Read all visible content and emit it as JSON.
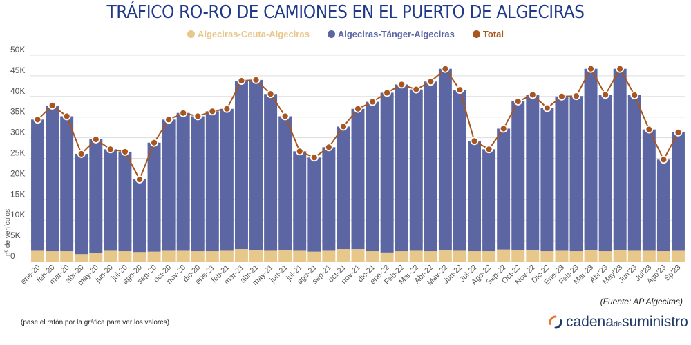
{
  "title": "TRÁFICO RO-RO DE CAMIONES EN EL PUERTO DE ALGECIRAS",
  "source": "(Fuente: AP Algeciras)",
  "hint": "(pase el ratón por la gráfica para ver los valores)",
  "brand": {
    "part1": "cadena",
    "part2": "de",
    "part3": "suministro"
  },
  "colors": {
    "title": "#1f3a8a",
    "ceuta": "#e8c78a",
    "tanger": "#5b66a3",
    "total": "#a8551f",
    "grid": "#dddddd",
    "axis_text": "#555555",
    "brand_orange": "#e8732a",
    "brand_blue": "#1f3a66"
  },
  "chart_data": {
    "type": "bar",
    "stacked": true,
    "title": "TRÁFICO RO-RO DE CAMIONES EN EL PUERTO DE ALGECIRAS",
    "xlabel": "",
    "ylabel": "nº de vehículos",
    "ylim": [
      0,
      50000
    ],
    "yticks": [
      0,
      5000,
      10000,
      15000,
      20000,
      25000,
      30000,
      35000,
      40000,
      45000,
      50000
    ],
    "ytick_labels": [
      "0",
      "5K",
      "10K",
      "15K",
      "20K",
      "25K",
      "30K",
      "35K",
      "40K",
      "45K",
      "50K"
    ],
    "grid": true,
    "legend_position": "top-center",
    "categories": [
      "ene-20",
      "feb-20",
      "mar-20",
      "abr-20",
      "may-20",
      "jun-20",
      "jul-20",
      "ago-20",
      "sep-20",
      "oct-20",
      "nov-20",
      "dic-20",
      "ene-21",
      "feb-21",
      "mar-21",
      "abr-21",
      "may-21",
      "jun-21",
      "jul-21",
      "ago-21",
      "sep-21",
      "oct-21",
      "nov-21",
      "dic-21",
      "ene-22",
      "Feb-22",
      "Mar-22",
      "Abr-22",
      "May-22",
      "Jun-22",
      "Jul-22",
      "Ago-22",
      "Sep-22",
      "Oct-22",
      "Nov-22",
      "Dic-22",
      "Ene-23",
      "Feb-23",
      "Mar-23",
      "Abr'23",
      "May'23",
      "Jun'23",
      "Jul'23",
      "Ago'23",
      "Sp'23"
    ],
    "series": [
      {
        "name": "Algeciras-Ceuta-Algeciras",
        "kind": "bar",
        "values": [
          2600,
          2500,
          2500,
          1800,
          2100,
          2600,
          2500,
          2300,
          2400,
          2600,
          2600,
          2500,
          2500,
          2600,
          3000,
          2700,
          2600,
          2700,
          2600,
          2400,
          2600,
          3000,
          3000,
          2500,
          2200,
          2500,
          2600,
          2500,
          2700,
          2600,
          2500,
          2500,
          2900,
          2700,
          2800,
          2500,
          2600,
          2500,
          2800,
          2500,
          2800,
          2600,
          2600,
          2500,
          2600
        ]
      },
      {
        "name": "Algeciras-Tánger-Algeciras",
        "kind": "bar",
        "values": [
          31800,
          35300,
          32700,
          24300,
          27500,
          24600,
          24100,
          17600,
          26400,
          31800,
          33400,
          32700,
          33900,
          34400,
          40800,
          41300,
          38000,
          32500,
          24100,
          22800,
          25100,
          29700,
          34000,
          36200,
          38700,
          40400,
          39100,
          41100,
          44000,
          39000,
          26700,
          24700,
          29300,
          36100,
          37600,
          34700,
          37400,
          37600,
          43900,
          37900,
          43900,
          37700,
          29400,
          22200,
          28700
        ]
      },
      {
        "name": "Total",
        "kind": "line",
        "values": [
          34400,
          37800,
          35200,
          26100,
          29600,
          27200,
          26600,
          19900,
          28800,
          34400,
          36000,
          35200,
          36400,
          37000,
          43800,
          44000,
          40600,
          35200,
          26700,
          25200,
          27700,
          32700,
          37000,
          38700,
          40900,
          42900,
          41700,
          43600,
          46700,
          41600,
          29200,
          27200,
          32200,
          38800,
          40400,
          37200,
          40000,
          40100,
          46700,
          40400,
          46700,
          40300,
          32000,
          24700,
          31300
        ]
      }
    ]
  }
}
